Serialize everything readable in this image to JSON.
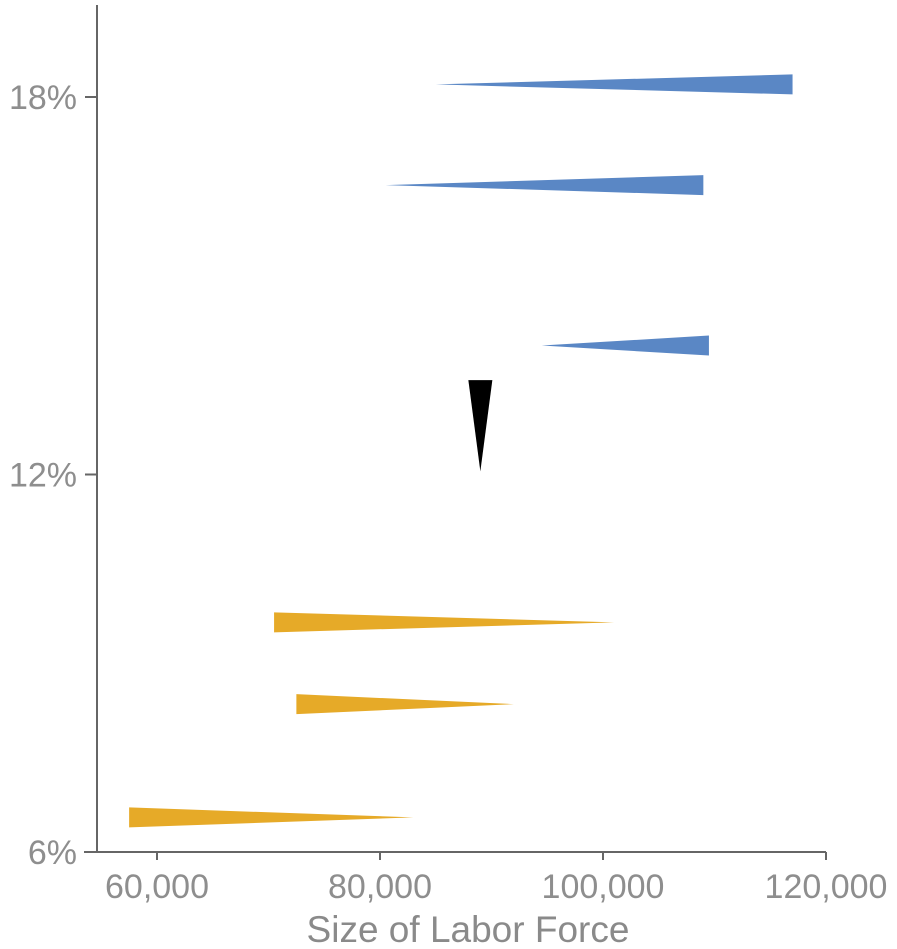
{
  "chart_data": {
    "type": "wedge",
    "xlabel": "Size of Labor Force",
    "ylabel": "",
    "xlim": [
      55000,
      122000
    ],
    "ylim": [
      6,
      20
    ],
    "x_ticks": [
      {
        "value": 60000,
        "label": "60,000"
      },
      {
        "value": 80000,
        "label": "80,000"
      },
      {
        "value": 100000,
        "label": "100,000"
      },
      {
        "value": 120000,
        "label": "120,000"
      }
    ],
    "y_ticks": [
      {
        "value": 6,
        "label": "6%"
      },
      {
        "value": 12,
        "label": "12%"
      },
      {
        "value": 18,
        "label": "18%"
      }
    ],
    "colors": {
      "increase": "#5a87c5",
      "decrease": "#e6aa28",
      "neutral": "#000000"
    },
    "wedges": [
      {
        "tail_x": 85000,
        "head_x": 117000,
        "y": 18.2,
        "group": "increase"
      },
      {
        "tail_x": 80500,
        "head_x": 109000,
        "y": 16.6,
        "group": "increase"
      },
      {
        "tail_x": 94500,
        "head_x": 109500,
        "y": 14.05,
        "group": "increase"
      },
      {
        "x": 89000,
        "y_top": 13.5,
        "y_bottom": 12.05,
        "group": "neutral"
      },
      {
        "tail_x": 101000,
        "head_x": 70500,
        "y": 9.65,
        "group": "decrease"
      },
      {
        "tail_x": 92000,
        "head_x": 72500,
        "y": 8.35,
        "group": "decrease"
      },
      {
        "tail_x": 83000,
        "head_x": 57500,
        "y": 6.55,
        "group": "decrease"
      }
    ]
  }
}
